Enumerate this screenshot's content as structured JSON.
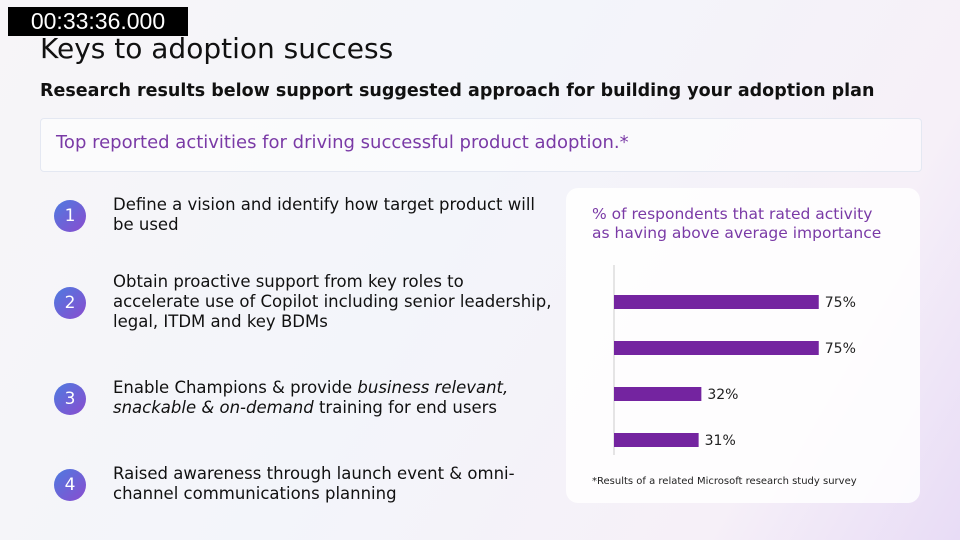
{
  "timestamp": "00:33:36.000",
  "header": {
    "title": "Keys to adoption success",
    "subtitle": "Research results below support suggested approach for building your adoption plan"
  },
  "banner": "Top reported activities for driving successful product adoption.*",
  "items": [
    {
      "number": "1",
      "text": [
        "Define a vision and identify how target product will be used"
      ]
    },
    {
      "number": "2",
      "text": [
        "Obtain proactive support from key roles to accelerate use of Copilot including senior leadership, legal, ITDM and key BDMs"
      ]
    },
    {
      "number": "3",
      "text": [
        "Enable Champions & provide ",
        "business relevant, snackable & on-demand",
        " training for end users"
      ]
    },
    {
      "number": "4",
      "text": [
        "Raised awareness through launch event & omni-channel communications planning"
      ]
    }
  ],
  "chart_data": {
    "type": "bar",
    "orientation": "horizontal",
    "title": "% of respondents that rated activity as having above average importance",
    "values": [
      75,
      75,
      32,
      31
    ],
    "value_labels": [
      "75%",
      "75%",
      "32%",
      "31%"
    ],
    "color": "#7424a0",
    "footnote": "*Results of a related Microsoft research study survey"
  }
}
